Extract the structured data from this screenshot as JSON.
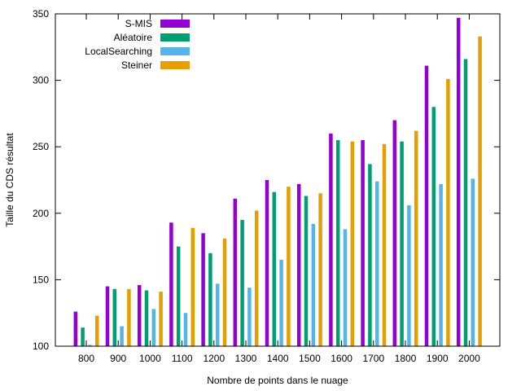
{
  "chart_data": {
    "type": "bar",
    "xlabel": "Nombre de points dans le nuage",
    "ylabel": "Taille du CDS résultat",
    "ylim": [
      100,
      350
    ],
    "yticks": [
      100,
      150,
      200,
      250,
      300,
      350
    ],
    "categories": [
      "800",
      "900",
      "1000",
      "1100",
      "1200",
      "1300",
      "1400",
      "1500",
      "1600",
      "1700",
      "1800",
      "1900",
      "2000"
    ],
    "grid": false,
    "legend_position": "top-left",
    "series": [
      {
        "name": "S-MIS",
        "color": "#9400d3",
        "values": [
          126,
          145,
          146,
          193,
          185,
          211,
          225,
          222,
          260,
          255,
          270,
          311,
          347
        ]
      },
      {
        "name": "Aléatoire",
        "color": "#009e73",
        "values": [
          114,
          143,
          142,
          175,
          170,
          195,
          216,
          213,
          255,
          237,
          254,
          280,
          316
        ]
      },
      {
        "name": "LocalSearching",
        "color": "#56b4e9",
        "values": [
          101,
          115,
          128,
          125,
          147,
          144,
          165,
          192,
          188,
          224,
          206,
          222,
          226
        ]
      },
      {
        "name": "Steiner",
        "color": "#e69f00",
        "values": [
          123,
          143,
          141,
          189,
          181,
          202,
          220,
          215,
          254,
          252,
          262,
          301,
          333
        ]
      }
    ]
  }
}
